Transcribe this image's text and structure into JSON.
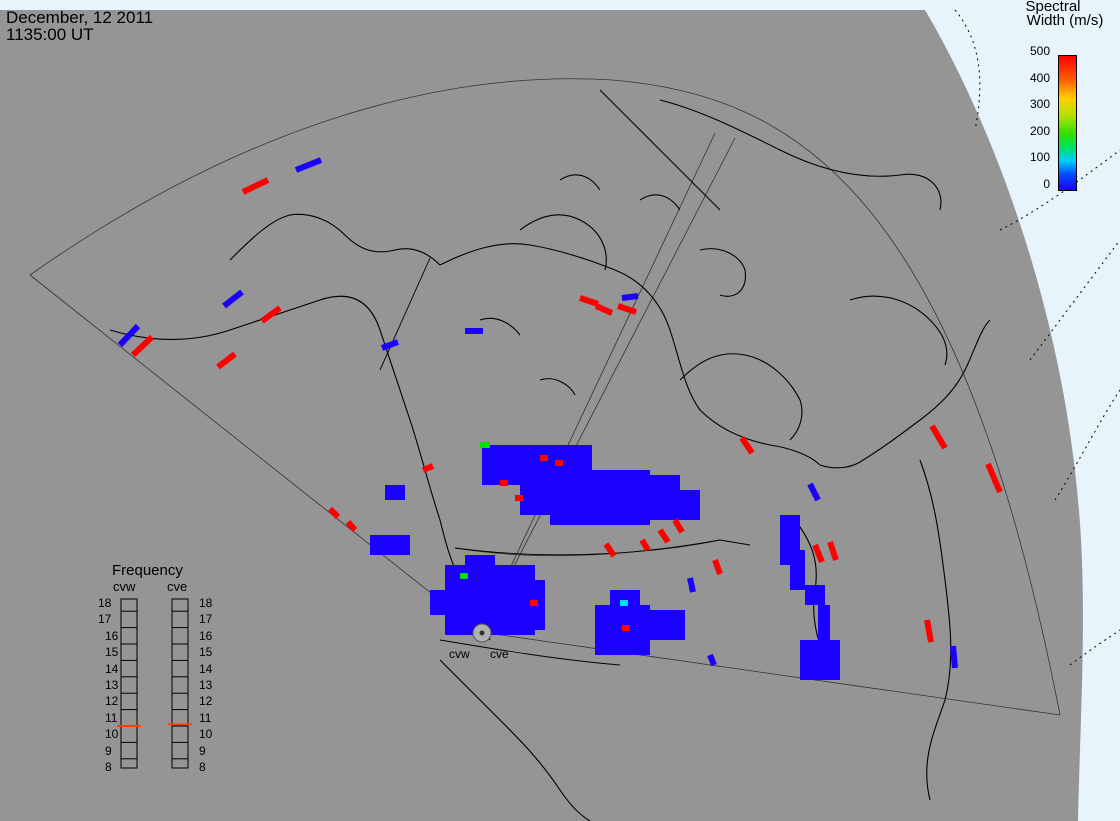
{
  "header": {
    "date": "December, 12 2011",
    "time": "1135:00 UT"
  },
  "colorbar": {
    "title_line1": "Spectral",
    "title_line2": "Width (m/s)",
    "ticks": [
      "500",
      "400",
      "300",
      "200",
      "100",
      "0"
    ]
  },
  "frequency_panel": {
    "title": "Frequency",
    "stations": [
      "cvw",
      "cve"
    ],
    "levels": [
      "18",
      "17",
      "16",
      "15",
      "14",
      "13",
      "12",
      "11",
      "10",
      "9",
      "8"
    ],
    "selected": {
      "cvw": 10.5,
      "cve": 10.6
    }
  },
  "radar_sites": [
    {
      "label": "cvw"
    },
    {
      "label": "cve"
    }
  ],
  "colors": {
    "land": "#959595",
    "ocean": "#e8f4fc",
    "high_width": "#ff0000",
    "low_width": "#1a00ff",
    "mid_width": "#00e000"
  }
}
